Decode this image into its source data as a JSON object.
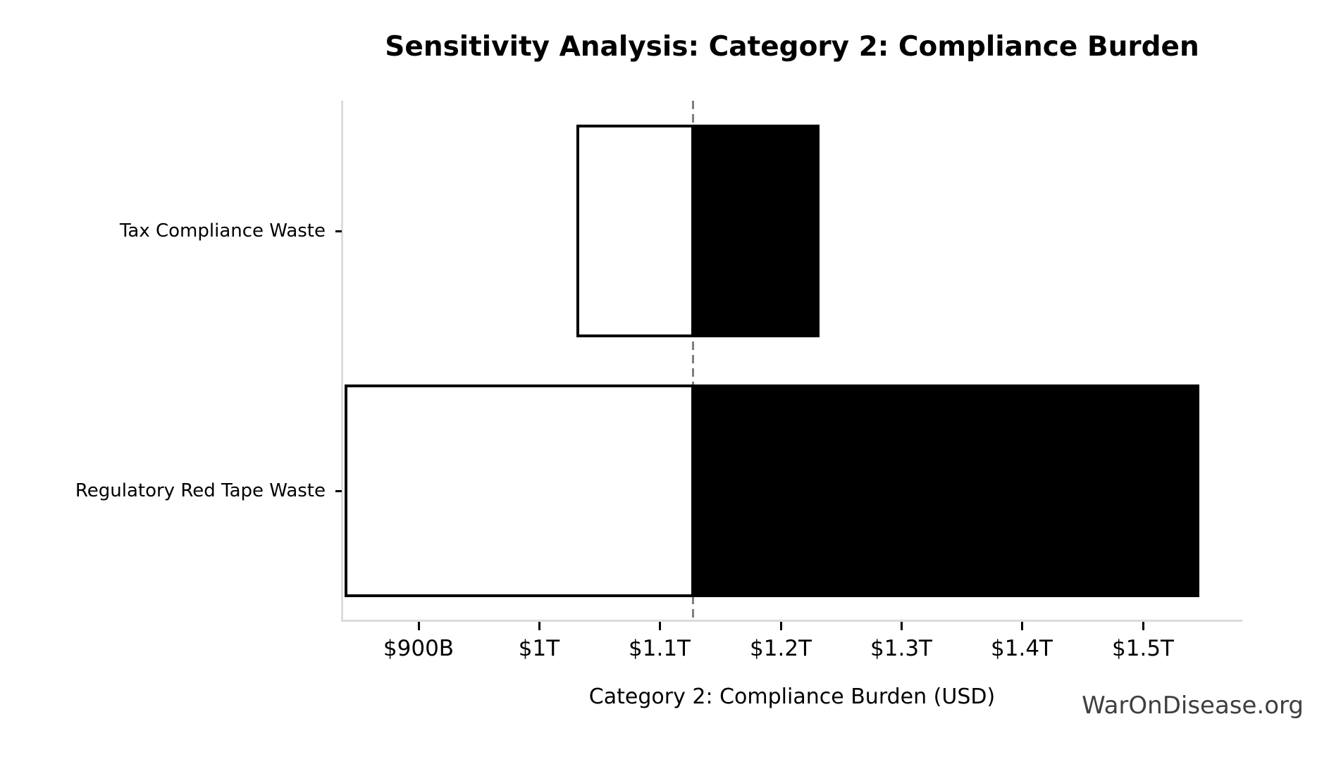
{
  "watermark": "WarOnDisease.org",
  "chart_data": {
    "type": "bar",
    "orientation": "horizontal",
    "variant": "tornado-sensitivity",
    "title": "Sensitivity Analysis: Category 2: Compliance Burden",
    "xlabel": "Category 2: Compliance Burden (USD)",
    "ylabel": "",
    "grid": false,
    "legend": false,
    "unit": "USD billions",
    "categories": [
      "Tax Compliance Waste",
      "Regulatory Red Tape Waste"
    ],
    "bars": [
      {
        "category": "Tax Compliance Waste",
        "low_usd_billion": 1031,
        "high_usd_billion": 1232
      },
      {
        "category": "Regulatory Red Tape Waste",
        "low_usd_billion": 839,
        "high_usd_billion": 1547
      }
    ],
    "baseline_usd_billion": 1127,
    "xlim_usd_billion": [
      837,
      1582
    ],
    "x_ticks": [
      {
        "value_usd_billion": 900,
        "label": "$900B"
      },
      {
        "value_usd_billion": 1000,
        "label": "$1T"
      },
      {
        "value_usd_billion": 1100,
        "label": "$1.1T"
      },
      {
        "value_usd_billion": 1200,
        "label": "$1.2T"
      },
      {
        "value_usd_billion": 1300,
        "label": "$1.3T"
      },
      {
        "value_usd_billion": 1400,
        "label": "$1.4T"
      },
      {
        "value_usd_billion": 1500,
        "label": "$1.5T"
      }
    ],
    "colors": {
      "low_segment_fill": "#ffffff",
      "high_segment_fill": "#000000",
      "bar_edge": "#000000",
      "baseline_line": "#7f7f7f",
      "spine": "#dcdcdc",
      "tick_mark": "#000000",
      "text": "#000000",
      "watermark_text": "#3f3f3f"
    }
  }
}
